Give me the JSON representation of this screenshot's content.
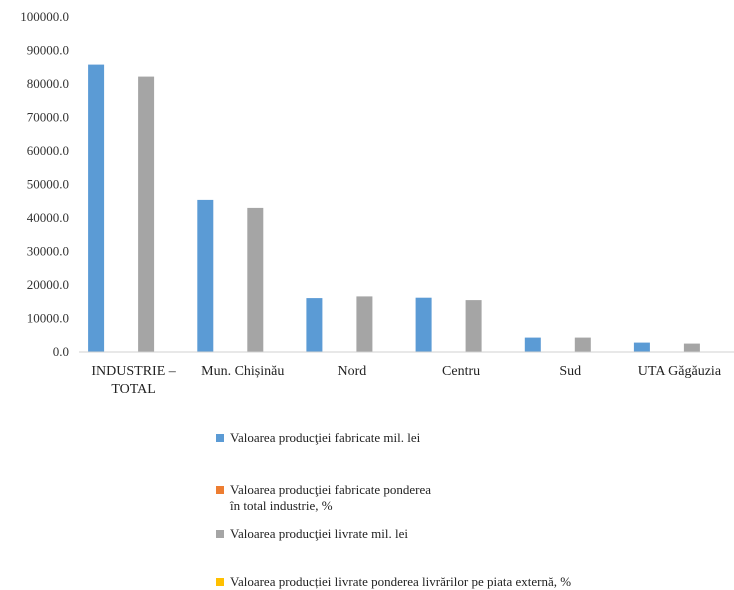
{
  "chart_data": {
    "type": "bar",
    "categories": [
      "INDUSTRIE –\nTOTAL",
      "Mun. Chișinău",
      "Nord",
      "Centru",
      "Sud",
      "UTA Găgăuzia"
    ],
    "series": [
      {
        "name": "Valoarea producţiei fabricate mil. lei",
        "color": "#5b9bd5",
        "values": [
          85800,
          45400,
          16100,
          16200,
          4300,
          2800
        ]
      },
      {
        "name": "Valoarea producţiei fabricate ponderea\nîn total industrie, %",
        "color": "#ed7d31",
        "values": [
          100,
          100,
          100,
          100,
          100,
          100
        ]
      },
      {
        "name": "Valoarea producţiei livrate mil. lei",
        "color": "#a5a5a5",
        "values": [
          82200,
          43000,
          16600,
          15500,
          4300,
          2500
        ]
      },
      {
        "name": "Valoarea producției livrate ponderea livrărilor pe piata externă, %",
        "color": "#ffc000",
        "values": [
          100,
          100,
          100,
          100,
          100,
          100
        ]
      }
    ],
    "ylim": [
      0,
      100000
    ],
    "yticks": [
      "0.0",
      "10000.0",
      "20000.0",
      "30000.0",
      "40000.0",
      "50000.0",
      "60000.0",
      "70000.0",
      "80000.0",
      "90000.0",
      "100000.0"
    ],
    "grid": false,
    "legend_position": "bottom"
  }
}
